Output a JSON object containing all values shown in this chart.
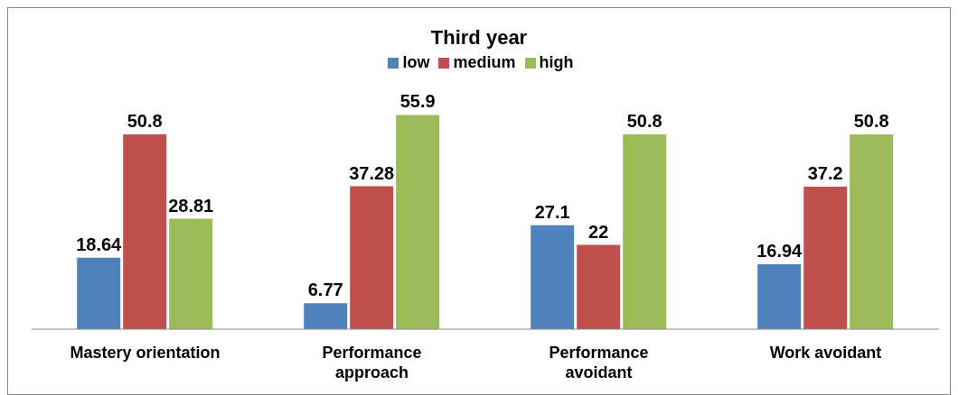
{
  "chart_data": {
    "type": "bar",
    "title": "Third year",
    "categories": [
      "Mastery orientation",
      "Performance approach",
      "Performance avoidant",
      "Work avoidant"
    ],
    "series": [
      {
        "name": "low",
        "color": "#4f81bd",
        "values": [
          18.64,
          6.77,
          27.1,
          16.94
        ]
      },
      {
        "name": "medium",
        "color": "#c0504d",
        "values": [
          50.8,
          37.28,
          22,
          37.2
        ]
      },
      {
        "name": "high",
        "color": "#9bbb59",
        "values": [
          28.81,
          55.9,
          50.8,
          50.8
        ]
      }
    ],
    "data_labels": true,
    "legend": "top",
    "grid": false
  }
}
